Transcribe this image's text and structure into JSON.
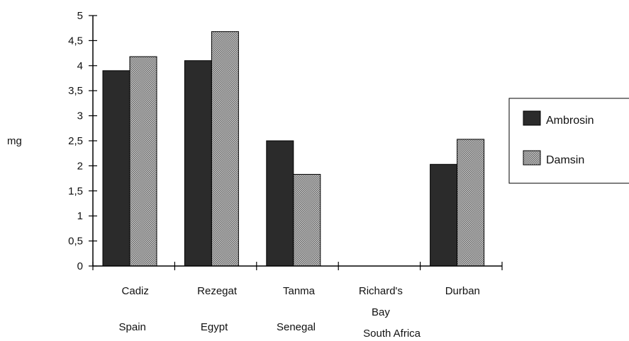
{
  "chart_data": {
    "type": "bar",
    "ylabel": "mg",
    "ylim": [
      0,
      5
    ],
    "yticks": [
      "0",
      "0,5",
      "1",
      "1,5",
      "2",
      "2,5",
      "3",
      "3,5",
      "4",
      "4,5",
      "5"
    ],
    "categories": [
      {
        "name": "Cadiz",
        "country": "Spain"
      },
      {
        "name": "Rezegat",
        "country": "Egypt"
      },
      {
        "name": "Tanma",
        "country": "Senegal"
      },
      {
        "name": "Richard's",
        "name2": "Bay",
        "country": ""
      },
      {
        "name": "Durban",
        "country": ""
      }
    ],
    "group_country": "South Africa",
    "series": [
      {
        "name": "Ambrosin",
        "values": [
          3.9,
          4.1,
          2.5,
          0,
          2.03
        ],
        "color": "#2b2b2b"
      },
      {
        "name": "Damsin",
        "values": [
          4.18,
          4.68,
          1.83,
          0,
          2.53
        ],
        "color": "#9a9a9a"
      }
    ],
    "legend_position": "right",
    "grid": false
  }
}
